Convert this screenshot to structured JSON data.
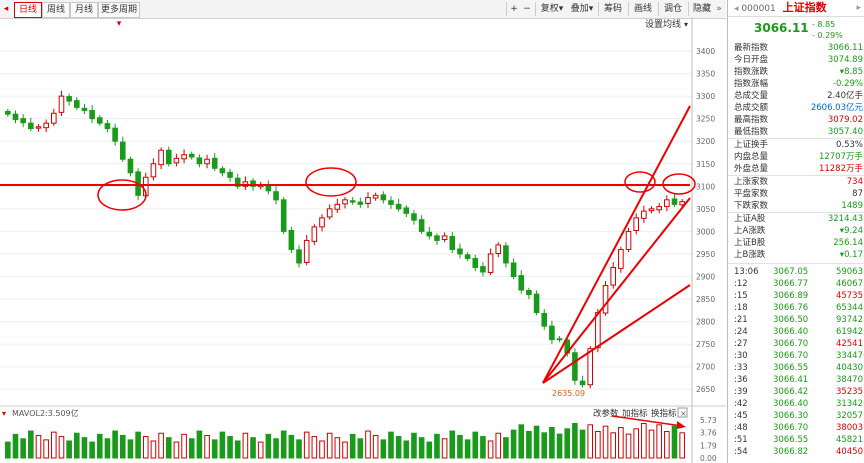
{
  "toolbar": {
    "tabs": [
      "日线",
      "周线",
      "月线",
      "更多周期"
    ],
    "more_arrow": "▾",
    "zoom_in": "+",
    "zoom_out": "−",
    "buttons": [
      "复权",
      "叠加",
      "筹码",
      "画线",
      "调仓",
      "隐藏"
    ],
    "setting_label": "设置均线",
    "settings_arrow": "▾"
  },
  "chart": {
    "y_ticks": [
      3400,
      3350,
      3300,
      3250,
      3200,
      3150,
      3100,
      3050,
      3000,
      2950,
      2900,
      2850,
      2800,
      2750,
      2700,
      2650
    ],
    "ylim": [
      2635,
      3420
    ],
    "low_label": "2635.09",
    "volume_legend": "MAVOL2:3.509亿",
    "volume_ticks": [
      "5.73",
      "3.76",
      "1.79",
      "0.00"
    ],
    "panel_buttons": [
      "改参数",
      "加指标",
      "换指标"
    ],
    "close_label": "×",
    "colors": {
      "up": "#d00000",
      "down": "#1a9a1a",
      "annotation": "#e00000"
    }
  },
  "chart_data": {
    "type": "candlestick",
    "note_series": "daily index candles, 89 sessions",
    "closes": [
      3260,
      3248,
      3241,
      3228,
      3232,
      3240,
      3262,
      3300,
      3289,
      3275,
      3268,
      3250,
      3240,
      3228,
      3200,
      3160,
      3130,
      3080,
      3120,
      3150,
      3180,
      3150,
      3162,
      3170,
      3165,
      3150,
      3160,
      3140,
      3130,
      3120,
      3100,
      3110,
      3100,
      3102,
      3090,
      3070,
      3000,
      2960,
      2930,
      2980,
      3010,
      3030,
      3050,
      3060,
      3070,
      3065,
      3060,
      3075,
      3080,
      3070,
      3060,
      3050,
      3040,
      3025,
      3000,
      2990,
      2980,
      2990,
      2960,
      2950,
      2940,
      2920,
      2910,
      2950,
      2970,
      2930,
      2900,
      2870,
      2860,
      2820,
      2790,
      2760,
      2760,
      2730,
      2670,
      2660,
      2740,
      2820,
      2880,
      2920,
      2960,
      3000,
      3030,
      3045,
      3050,
      3055,
      3070,
      3060,
      3066
    ],
    "volume_ylim": [
      0,
      5.73
    ]
  },
  "sidebar": {
    "code": "000001",
    "name": "上证指数",
    "price": "3066.11",
    "change": "- 8.85",
    "change_pct": "- 0.29%",
    "rows": [
      {
        "k": "最新指数",
        "v": "3066.11",
        "c": "g"
      },
      {
        "k": "今日开盘",
        "v": "3074.89",
        "c": "g"
      },
      {
        "k": "指数涨跌",
        "v": "▾8.85",
        "c": "g"
      },
      {
        "k": "指数涨幅",
        "v": "-0.29%",
        "c": "g"
      },
      {
        "k": "总成交量",
        "v": "2.40亿手",
        "c": ""
      },
      {
        "k": "总成交额",
        "v": "2606.03亿元",
        "c": "b"
      },
      {
        "k": "最高指数",
        "v": "3079.02",
        "c": "r"
      },
      {
        "k": "最低指数",
        "v": "3057.40",
        "c": "g"
      }
    ],
    "rows2": [
      {
        "k": "上证换手",
        "v": "0.53%",
        "c": ""
      },
      {
        "k": "内盘总量",
        "v": "12707万手",
        "c": "g"
      },
      {
        "k": "外盘总量",
        "v": "11282万手",
        "c": "r"
      }
    ],
    "rows3": [
      {
        "k": "上涨家数",
        "v": "734",
        "c": "r"
      },
      {
        "k": "平盘家数",
        "v": "87",
        "c": ""
      },
      {
        "k": "下跌家数",
        "v": "1489",
        "c": "g"
      }
    ],
    "rows4": [
      {
        "k": "上证A股",
        "v": "3214.43",
        "c": "g"
      },
      {
        "k": "上A涨跌",
        "v": "▾9.24",
        "c": "g"
      },
      {
        "k": "上证B股",
        "v": "256.14",
        "c": "g"
      },
      {
        "k": "上B涨跌",
        "v": "▾0.17",
        "c": "g"
      }
    ],
    "ticks": [
      {
        "t": "13:06",
        "p": "3067.05",
        "v": "59063",
        "c": "g"
      },
      {
        "t": ":12",
        "p": "3066.77",
        "v": "46067",
        "c": "g"
      },
      {
        "t": ":15",
        "p": "3066.89",
        "v": "45735",
        "c": "r"
      },
      {
        "t": ":18",
        "p": "3066.76",
        "v": "65344",
        "c": "g"
      },
      {
        "t": ":21",
        "p": "3066.50",
        "v": "93742",
        "c": "g"
      },
      {
        "t": ":24",
        "p": "3066.40",
        "v": "61942",
        "c": "g"
      },
      {
        "t": ":27",
        "p": "3066.70",
        "v": "42541",
        "c": "r"
      },
      {
        "t": ":30",
        "p": "3066.70",
        "v": "33447",
        "c": "g"
      },
      {
        "t": ":33",
        "p": "3066.55",
        "v": "40430",
        "c": "g"
      },
      {
        "t": ":36",
        "p": "3066.41",
        "v": "38470",
        "c": "g"
      },
      {
        "t": ":39",
        "p": "3066.42",
        "v": "35235",
        "c": "r"
      },
      {
        "t": ":42",
        "p": "3066.40",
        "v": "31342",
        "c": "g"
      },
      {
        "t": ":45",
        "p": "3066.30",
        "v": "32057",
        "c": "g"
      },
      {
        "t": ":48",
        "p": "3066.70",
        "v": "38003",
        "c": "r"
      },
      {
        "t": ":51",
        "p": "3066.55",
        "v": "45821",
        "c": "g"
      },
      {
        "t": ":54",
        "p": "3066.82",
        "v": "40450",
        "c": "r"
      }
    ]
  }
}
